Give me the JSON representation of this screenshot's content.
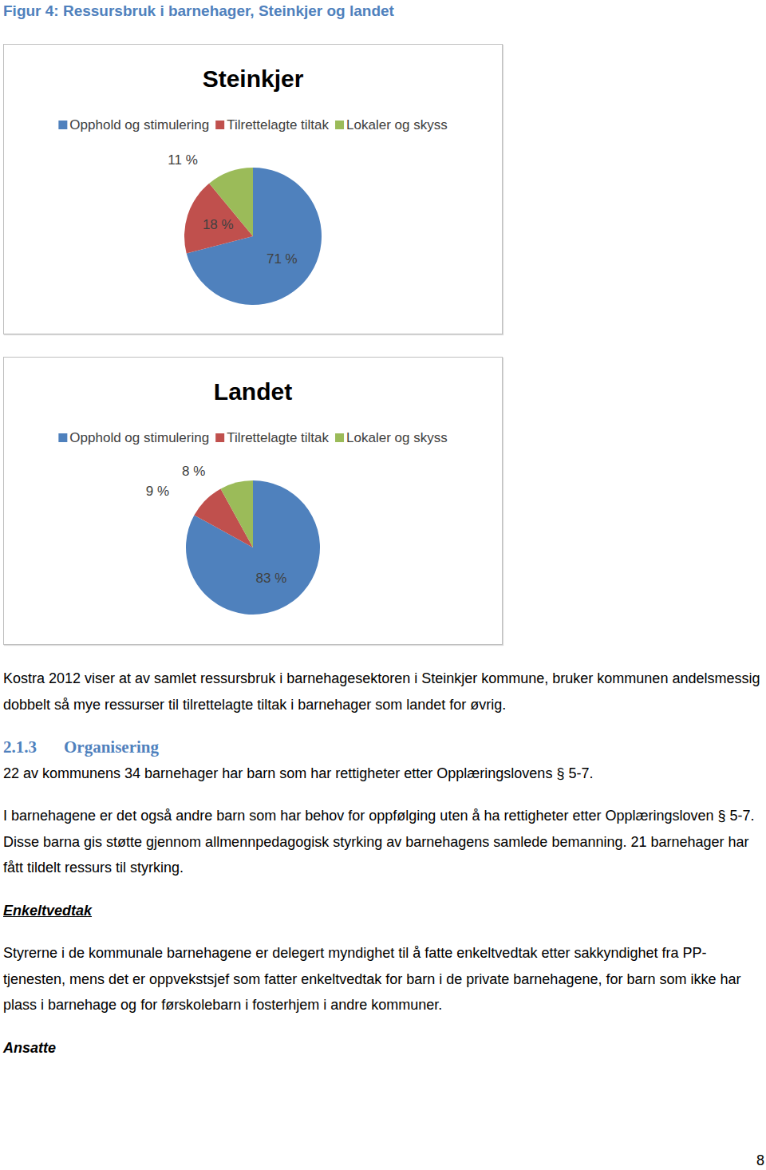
{
  "caption": "Figur 4: Ressursbruk i barnehager, Steinkjer og landet",
  "chart_data": [
    {
      "type": "pie",
      "title": "Steinkjer",
      "categories": [
        "Opphold og stimulering",
        "Tilrettelagte tiltak",
        "Lokaler og skyss"
      ],
      "values": [
        71,
        18,
        11
      ],
      "value_labels": [
        "71 %",
        "18 %",
        "11 %"
      ],
      "colors": [
        "#4f81bd",
        "#c0504d",
        "#9bbb59"
      ],
      "legend": "top",
      "data_labels": true
    },
    {
      "type": "pie",
      "title": "Landet",
      "categories": [
        "Opphold og stimulering",
        "Tilrettelagte tiltak",
        "Lokaler og skyss"
      ],
      "values": [
        83,
        9,
        8
      ],
      "value_labels": [
        "83 %",
        "9 %",
        "8 %"
      ],
      "colors": [
        "#4f81bd",
        "#c0504d",
        "#9bbb59"
      ],
      "legend": "top",
      "data_labels": true
    }
  ],
  "body": [
    {
      "kind": "paragraph",
      "text": "Kostra 2012 viser at av samlet ressursbruk i barnehagesektoren i Steinkjer kommune, bruker kommunen andelsmessig dobbelt så mye ressurser til tilrettelagte tiltak i barnehager som landet for øvrig."
    },
    {
      "kind": "heading",
      "number": "2.1.3",
      "text": "Organisering"
    },
    {
      "kind": "paragraph",
      "text": "22 av kommunens 34 barnehager har barn som har rettigheter etter Opplæringslovens § 5-7."
    },
    {
      "kind": "paragraph",
      "text": "I barnehagene er det også andre barn som har behov for oppfølging uten å ha rettigheter etter Opplæringsloven § 5-7. Disse barna gis støtte gjennom allmennpedagogisk styrking av barnehagens samlede bemanning. 21 barnehager har fått tildelt ressurs til styrking."
    },
    {
      "kind": "subheading_underlined",
      "text": "Enkeltvedtak"
    },
    {
      "kind": "paragraph",
      "text": "Styrerne i de kommunale barnehagene er delegert myndighet til å fatte enkeltvedtak etter sakkyndighet fra PP-tjenesten, mens det er oppvekstsjef som fatter enkeltvedtak for barn i de private barnehagene, for barn som ikke har plass i barnehage og for førskolebarn i fosterhjem i andre kommuner."
    },
    {
      "kind": "subheading",
      "text": "Ansatte"
    }
  ],
  "page_number": 8
}
